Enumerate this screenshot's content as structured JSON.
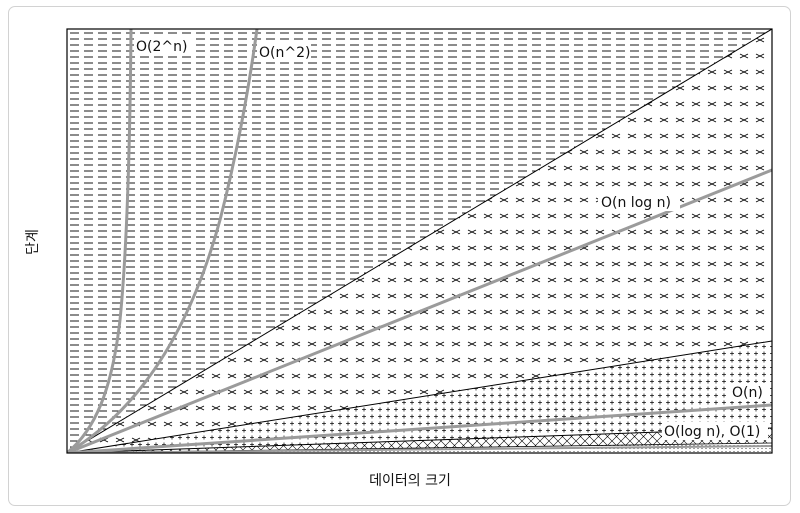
{
  "axes": {
    "y_label": "단계",
    "x_label": "데이터의 크기"
  },
  "curves": [
    {
      "key": "exp",
      "label": "O(2^n)"
    },
    {
      "key": "quad",
      "label": "O(n^2)"
    },
    {
      "key": "nlogn",
      "label": "O(n log n)"
    },
    {
      "key": "linear",
      "label": "O(n)"
    },
    {
      "key": "log_const",
      "label": "O(log n), O(1)"
    }
  ],
  "colors": {
    "curve": "#9b9b9b",
    "boundary": "#000000",
    "frame": "#000000"
  }
}
